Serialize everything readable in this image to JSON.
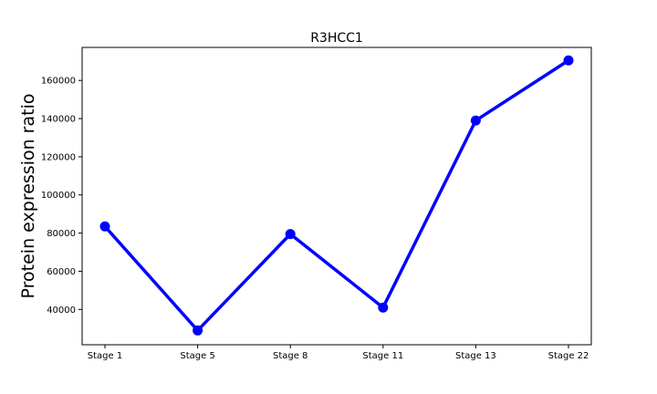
{
  "chart_data": {
    "type": "line",
    "title": "R3HCC1",
    "xlabel": "",
    "ylabel": "Protein expression ratio",
    "categories": [
      "Stage 1",
      "Stage 5",
      "Stage 8",
      "Stage 11",
      "Stage 13",
      "Stage 22"
    ],
    "series": [
      {
        "values": [
          83500,
          29000,
          79500,
          41000,
          139000,
          170500
        ],
        "color": "#0000ff"
      }
    ],
    "ylim": [
      21500,
      177300
    ],
    "yticks": [
      40000,
      60000,
      80000,
      100000,
      120000,
      140000,
      160000
    ],
    "grid": false,
    "legend": "none",
    "marker": "circle"
  }
}
